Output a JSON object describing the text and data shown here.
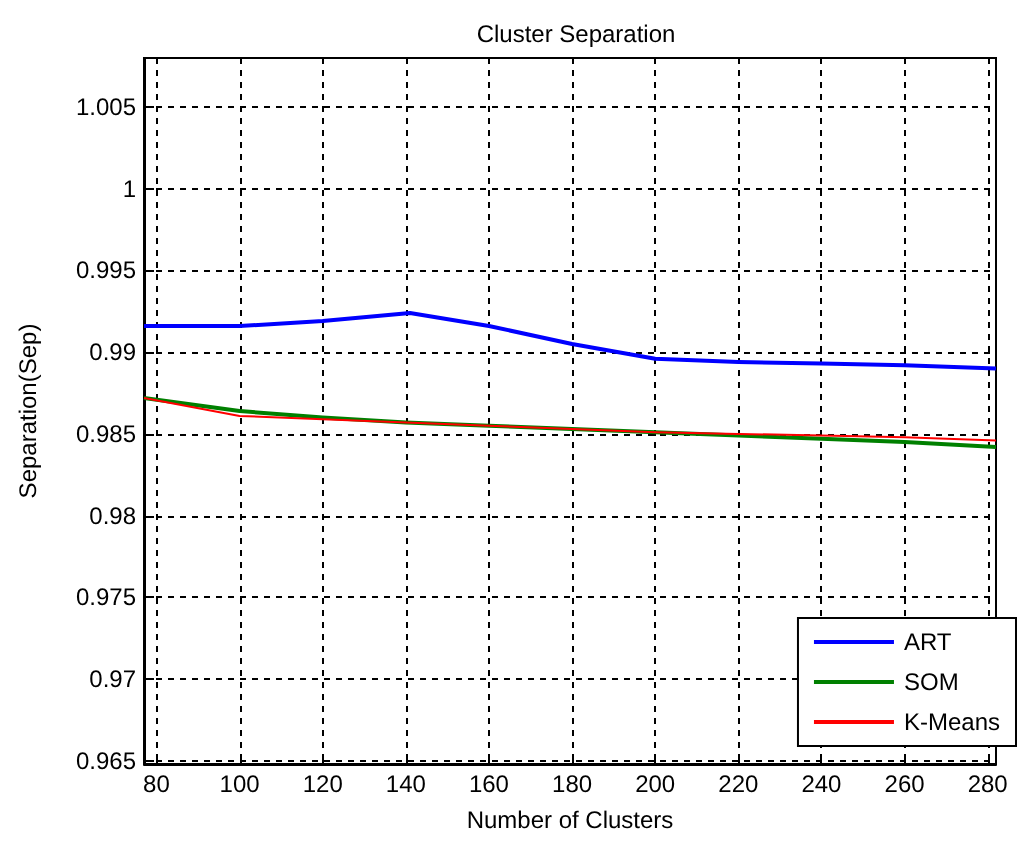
{
  "chart_data": {
    "type": "line",
    "title": "Cluster Separation",
    "xlabel": "Number of Clusters",
    "ylabel": "Separation(Sep)",
    "xlim": [
      77,
      282
    ],
    "xticks": [
      80,
      100,
      120,
      140,
      160,
      180,
      200,
      220,
      240,
      260,
      280
    ],
    "ylim": [
      0.9648,
      1.008
    ],
    "yticks": [
      0.965,
      0.97,
      0.975,
      0.98,
      0.985,
      0.99,
      0.995,
      1,
      1.005
    ],
    "grid": true,
    "legend": "bottom right",
    "marker": "none",
    "line_style": "solid",
    "series": [
      {
        "name": "ART",
        "color": "#0000ff",
        "x": [
          77,
          100,
          120,
          141,
          160,
          180,
          200,
          220,
          240,
          260,
          282
        ],
        "values": [
          0.9916,
          0.9916,
          0.9919,
          0.9924,
          0.9916,
          0.9905,
          0.9896,
          0.9894,
          0.9893,
          0.9892,
          0.989
        ]
      },
      {
        "name": "SOM",
        "color": "#008000",
        "x": [
          77,
          100,
          120,
          140,
          160,
          180,
          200,
          220,
          240,
          260,
          282
        ],
        "values": [
          0.9872,
          0.9864,
          0.986,
          0.9857,
          0.9855,
          0.9853,
          0.9851,
          0.9849,
          0.9847,
          0.9845,
          0.9842
        ]
      },
      {
        "name": "K-Means",
        "color": "#ff0000",
        "x": [
          77,
          100,
          120,
          140,
          160,
          180,
          200,
          220,
          240,
          260,
          282
        ],
        "values": [
          0.9872,
          0.9861,
          0.9859,
          0.9857,
          0.9855,
          0.9853,
          0.9851,
          0.985,
          0.9849,
          0.9848,
          0.9846
        ]
      }
    ]
  }
}
